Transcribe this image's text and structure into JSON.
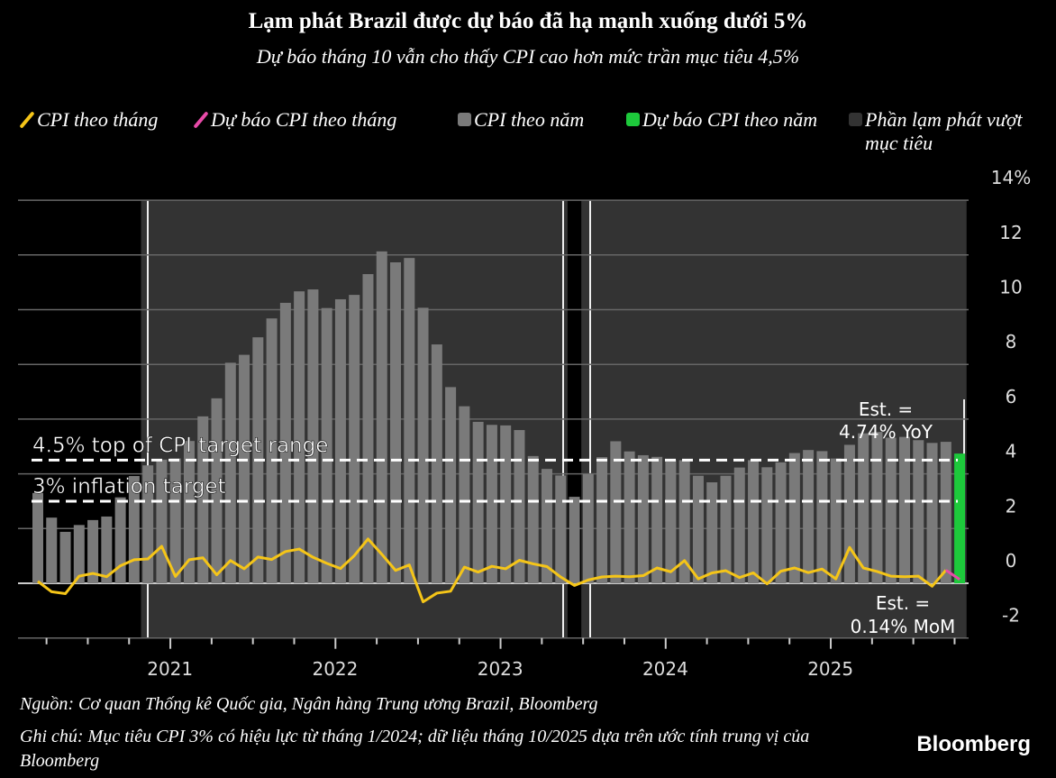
{
  "header": {
    "title": "Lạm phát Brazil được dự báo đã hạ mạnh xuống dưới 5%",
    "subtitle": "Dự báo tháng 10 vẫn cho thấy CPI cao hơn mức trần mục tiêu 4,5%"
  },
  "legend": [
    {
      "label": "CPI theo tháng",
      "color": "#f5c518",
      "icon": "line-swatch"
    },
    {
      "label": "Dự báo CPI theo tháng",
      "color": "#e84aa8",
      "icon": "line-swatch"
    },
    {
      "label": "CPI theo năm",
      "color": "#7a7a7a",
      "icon": "square-swatch"
    },
    {
      "label": "Dự báo CPI theo năm",
      "color": "#1dc93b",
      "icon": "square-swatch"
    },
    {
      "label": "Phần lạm phát vượt mục tiêu",
      "color": "#333333",
      "icon": "square-swatch"
    }
  ],
  "chart_data": {
    "type": "bar",
    "title": "Lạm phát Brazil được dự báo đã hạ mạnh xuống dưới 5%",
    "x_start": "2020-03",
    "x_end": "2025-10",
    "x_tick_labels": [
      "2021",
      "2022",
      "2023",
      "2024",
      "2025"
    ],
    "y_tick_labels": [
      "-2",
      "0",
      "2",
      "4",
      "6",
      "8",
      "10",
      "12",
      "14%"
    ],
    "ylim": [
      -2,
      14
    ],
    "yoy": [
      3.3,
      2.4,
      1.88,
      2.13,
      2.31,
      2.44,
      3.14,
      3.92,
      4.31,
      4.52,
      4.56,
      5.2,
      6.1,
      6.76,
      8.06,
      8.35,
      8.99,
      9.68,
      10.25,
      10.67,
      10.74,
      10.06,
      10.38,
      10.54,
      11.3,
      12.13,
      11.73,
      11.89,
      10.07,
      8.73,
      7.17,
      6.47,
      5.9,
      5.79,
      5.77,
      5.6,
      4.65,
      4.18,
      3.94,
      3.16,
      3.99,
      4.61,
      5.19,
      4.82,
      4.68,
      4.62,
      4.51,
      4.5,
      3.93,
      3.69,
      3.93,
      4.23,
      4.5,
      4.24,
      4.42,
      4.76,
      4.87,
      4.83,
      4.56,
      5.06,
      5.48,
      5.53,
      5.32,
      5.35,
      5.23,
      5.13,
      5.17,
      4.74
    ],
    "mom": [
      0.07,
      -0.31,
      -0.38,
      0.26,
      0.36,
      0.24,
      0.64,
      0.86,
      0.89,
      1.35,
      0.25,
      0.86,
      0.93,
      0.31,
      0.83,
      0.53,
      0.96,
      0.87,
      1.16,
      1.25,
      0.95,
      0.73,
      0.54,
      1.01,
      1.62,
      1.06,
      0.47,
      0.67,
      -0.68,
      -0.36,
      -0.29,
      0.59,
      0.41,
      0.62,
      0.53,
      0.84,
      0.71,
      0.61,
      0.23,
      -0.08,
      0.12,
      0.23,
      0.26,
      0.24,
      0.28,
      0.56,
      0.42,
      0.83,
      0.16,
      0.38,
      0.46,
      0.21,
      0.38,
      -0.02,
      0.44,
      0.56,
      0.39,
      0.52,
      0.16,
      1.31,
      0.56,
      0.43,
      0.26,
      0.24,
      0.26,
      -0.11,
      0.48,
      0.14
    ],
    "forecast_index": 67,
    "above_target_periods": [
      [
        "2020-11",
        "2023-05"
      ],
      [
        "2023-07",
        "2025-10"
      ]
    ],
    "reference_lines": [
      {
        "value": 4.5,
        "label": "4.5% top of CPI target range"
      },
      {
        "value": 3,
        "label": "3% inflation target"
      }
    ],
    "annotations": {
      "yoy_est": [
        "Est. =",
        "4.74% YoY"
      ],
      "mom_est": [
        "Est. =",
        "0.14% MoM"
      ]
    }
  },
  "footer": {
    "source": "Nguồn: Cơ quan Thống kê Quốc gia, Ngân hàng Trung ương Brazil, Bloomberg",
    "note": "Ghi chú: Mục tiêu CPI 3% có hiệu lực từ tháng 1/2024; dữ liệu tháng 10/2025 dựa trên ước tính trung vị của Bloomberg",
    "brand": "Bloomberg"
  }
}
